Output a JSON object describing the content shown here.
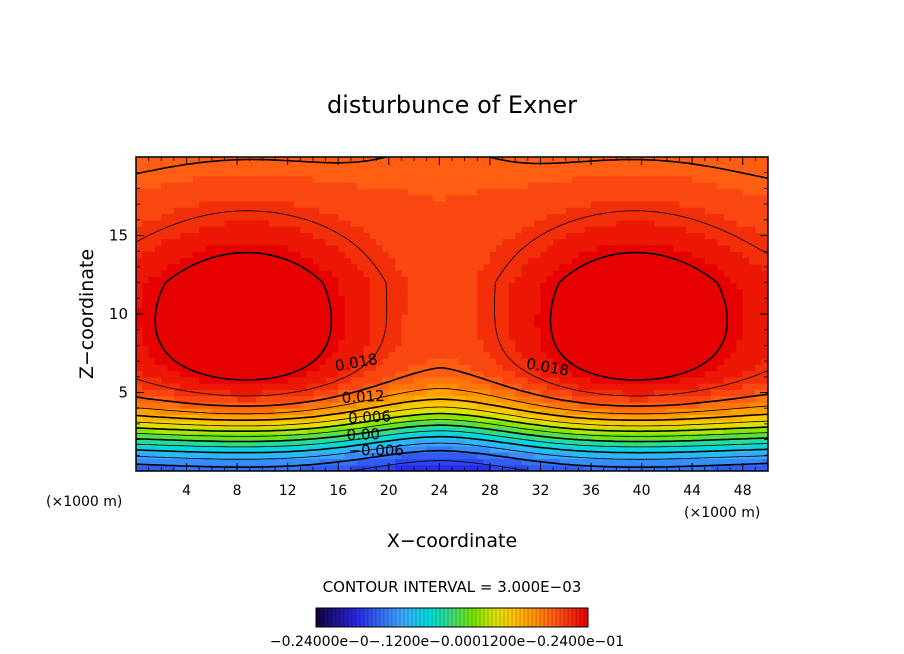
{
  "chart_data": {
    "type": "contour",
    "title": "disturbunce of Exner",
    "xlabel": "X−coordinate",
    "ylabel": "Z−coordinate",
    "x_unit_left": "(×1000 m)",
    "x_unit_right": "(×1000 m)",
    "x_range": [
      0,
      50
    ],
    "z_range": [
      0,
      20
    ],
    "x_ticks": [
      {
        "value": 4,
        "label": "4"
      },
      {
        "value": 8,
        "label": "8"
      },
      {
        "value": 12,
        "label": "12"
      },
      {
        "value": 16,
        "label": "16"
      },
      {
        "value": 20,
        "label": "20"
      },
      {
        "value": 24,
        "label": "24"
      },
      {
        "value": 28,
        "label": "28"
      },
      {
        "value": 32,
        "label": "32"
      },
      {
        "value": 36,
        "label": "36"
      },
      {
        "value": 40,
        "label": "40"
      },
      {
        "value": 44,
        "label": "44"
      },
      {
        "value": 48,
        "label": "48"
      }
    ],
    "z_ticks": [
      {
        "value": 5,
        "label": "5"
      },
      {
        "value": 10,
        "label": "10"
      },
      {
        "value": 15,
        "label": "15"
      }
    ],
    "contour_interval_text": "CONTOUR INTERVAL = 3.000E−03",
    "contour_interval": 0.003,
    "value_range": [
      -0.024,
      0.024
    ],
    "labeled_contours": [
      {
        "value": 0.018,
        "label": "0.018",
        "x": 17.5,
        "z": 6.6,
        "angle": -10
      },
      {
        "value": 0.018,
        "label": "0.018",
        "x": 32.5,
        "z": 6.3,
        "angle": 10
      },
      {
        "value": 0.012,
        "label": "0.012",
        "x": 18.0,
        "z": 4.4,
        "angle": -3
      },
      {
        "value": 0.006,
        "label": "0.006",
        "x": 18.5,
        "z": 3.1,
        "angle": -3
      },
      {
        "value": 0.0,
        "label": "0.00",
        "x": 18.0,
        "z": 2.0,
        "angle": -2
      },
      {
        "value": -0.006,
        "label": "−0.006",
        "x": 19.0,
        "z": 1.0,
        "angle": 0
      }
    ],
    "colorbar": {
      "labels_text": "−0.24000e−0−.1200e−0.000​1200e−0.2400e−01"
    }
  }
}
